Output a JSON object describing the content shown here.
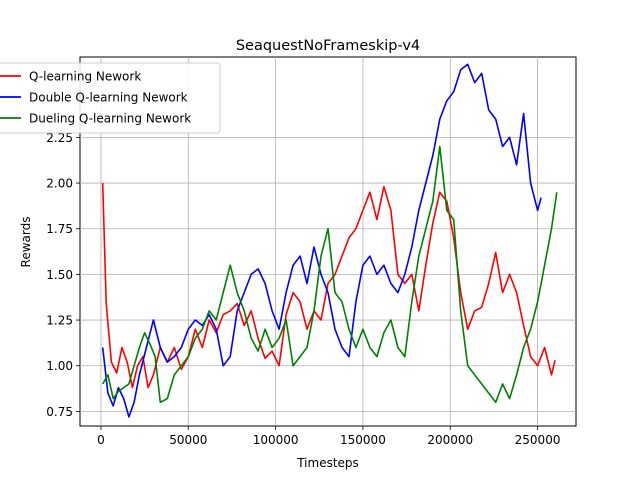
{
  "chart_data": {
    "type": "line",
    "title": "SeaquestNoFrameskip-v4",
    "xlabel": "Timesteps",
    "ylabel": "Rewards",
    "xlim": [
      -12000,
      272000
    ],
    "ylim": [
      0.67,
      2.69
    ],
    "xticks": [
      0,
      50000,
      100000,
      150000,
      200000,
      250000
    ],
    "yticks": [
      0.75,
      1.0,
      1.25,
      1.5,
      1.75,
      2.0,
      2.25
    ],
    "grid": true,
    "legend_position": "top-left",
    "series": [
      {
        "name": "Q-learning Nework",
        "color": "#ff0000",
        "x": [
          1000,
          3000,
          6000,
          9000,
          12000,
          15000,
          18000,
          21000,
          24000,
          27000,
          30000,
          34000,
          38000,
          42000,
          46000,
          50000,
          54000,
          58000,
          62000,
          66000,
          70000,
          74000,
          78000,
          82000,
          86000,
          90000,
          94000,
          98000,
          102000,
          106000,
          110000,
          114000,
          118000,
          122000,
          126000,
          130000,
          134000,
          138000,
          142000,
          146000,
          150000,
          154000,
          158000,
          162000,
          166000,
          170000,
          174000,
          178000,
          182000,
          186000,
          190000,
          194000,
          198000,
          202000,
          206000,
          210000,
          214000,
          218000,
          222000,
          226000,
          230000,
          234000,
          238000,
          242000,
          246000,
          250000,
          254000,
          258000,
          260000
        ],
        "y": [
          2.0,
          1.34,
          1.02,
          0.96,
          1.1,
          1.02,
          0.88,
          1.0,
          1.05,
          0.88,
          0.95,
          1.1,
          1.02,
          1.1,
          0.98,
          1.05,
          1.2,
          1.1,
          1.25,
          1.18,
          1.28,
          1.3,
          1.34,
          1.22,
          1.3,
          1.15,
          1.04,
          1.08,
          1.0,
          1.28,
          1.4,
          1.35,
          1.2,
          1.3,
          1.25,
          1.45,
          1.5,
          1.6,
          1.7,
          1.75,
          1.85,
          1.95,
          1.8,
          1.98,
          1.85,
          1.5,
          1.45,
          1.5,
          1.3,
          1.55,
          1.78,
          1.95,
          1.9,
          1.7,
          1.4,
          1.2,
          1.3,
          1.32,
          1.45,
          1.62,
          1.4,
          1.5,
          1.4,
          1.22,
          1.05,
          1.0,
          1.1,
          0.95,
          1.03
        ]
      },
      {
        "name": "Double Q-learning Nework",
        "color": "#0000ff",
        "x": [
          1000,
          4000,
          7000,
          10000,
          13000,
          16000,
          19000,
          22000,
          26000,
          30000,
          34000,
          38000,
          42000,
          46000,
          50000,
          54000,
          58000,
          62000,
          66000,
          70000,
          74000,
          78000,
          82000,
          86000,
          90000,
          94000,
          98000,
          102000,
          106000,
          110000,
          114000,
          118000,
          122000,
          126000,
          130000,
          134000,
          138000,
          142000,
          146000,
          150000,
          154000,
          158000,
          162000,
          166000,
          170000,
          174000,
          178000,
          182000,
          186000,
          190000,
          194000,
          198000,
          202000,
          206000,
          210000,
          214000,
          218000,
          222000,
          226000,
          230000,
          234000,
          238000,
          242000,
          246000,
          250000,
          252000
        ],
        "y": [
          1.1,
          0.85,
          0.78,
          0.88,
          0.82,
          0.72,
          0.8,
          0.95,
          1.1,
          1.25,
          1.1,
          1.02,
          1.05,
          1.1,
          1.2,
          1.25,
          1.22,
          1.28,
          1.2,
          1.0,
          1.05,
          1.3,
          1.4,
          1.5,
          1.53,
          1.45,
          1.3,
          1.2,
          1.4,
          1.55,
          1.6,
          1.45,
          1.65,
          1.5,
          1.4,
          1.2,
          1.1,
          1.05,
          1.35,
          1.55,
          1.6,
          1.5,
          1.55,
          1.45,
          1.4,
          1.5,
          1.65,
          1.85,
          2.0,
          2.15,
          2.35,
          2.45,
          2.5,
          2.62,
          2.65,
          2.55,
          2.6,
          2.4,
          2.35,
          2.2,
          2.25,
          2.1,
          2.38,
          2.0,
          1.85,
          1.92
        ]
      },
      {
        "name": "Dueling Q-learning Nework",
        "color": "#008000",
        "x": [
          1000,
          4000,
          7000,
          10000,
          13000,
          16000,
          19000,
          22000,
          25000,
          28000,
          31000,
          34000,
          38000,
          42000,
          46000,
          50000,
          54000,
          58000,
          62000,
          66000,
          70000,
          74000,
          78000,
          82000,
          86000,
          90000,
          94000,
          98000,
          102000,
          106000,
          110000,
          114000,
          118000,
          122000,
          126000,
          130000,
          134000,
          138000,
          142000,
          146000,
          150000,
          154000,
          158000,
          162000,
          166000,
          170000,
          174000,
          178000,
          182000,
          186000,
          190000,
          194000,
          198000,
          202000,
          206000,
          210000,
          214000,
          218000,
          222000,
          226000,
          230000,
          234000,
          238000,
          242000,
          246000,
          250000,
          254000,
          258000,
          261000
        ],
        "y": [
          0.9,
          0.95,
          0.82,
          0.86,
          0.88,
          0.9,
          1.0,
          1.1,
          1.18,
          1.12,
          1.05,
          0.8,
          0.82,
          0.95,
          1.0,
          1.05,
          1.15,
          1.2,
          1.3,
          1.25,
          1.4,
          1.55,
          1.4,
          1.3,
          1.15,
          1.08,
          1.2,
          1.1,
          1.15,
          1.25,
          1.0,
          1.05,
          1.1,
          1.3,
          1.6,
          1.75,
          1.4,
          1.35,
          1.2,
          1.1,
          1.2,
          1.1,
          1.05,
          1.18,
          1.25,
          1.1,
          1.05,
          1.35,
          1.6,
          1.75,
          1.9,
          2.2,
          1.85,
          1.8,
          1.3,
          1.0,
          0.95,
          0.9,
          0.85,
          0.8,
          0.9,
          0.82,
          0.95,
          1.1,
          1.2,
          1.35,
          1.55,
          1.75,
          1.95
        ]
      }
    ]
  }
}
